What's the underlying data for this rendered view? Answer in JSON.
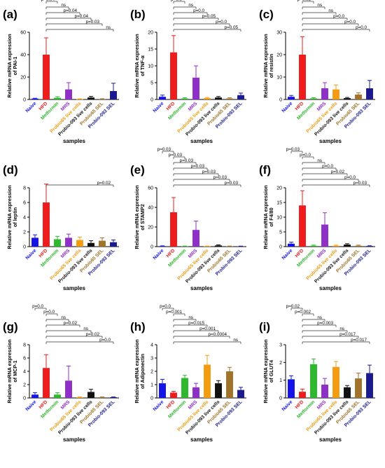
{
  "figure": {
    "xlabel": "samples",
    "sample_labels": [
      "Naive",
      "HFD",
      "Metformin",
      "MRS",
      "Probio65 live cells",
      "Probio-093 live cells",
      "Probio65 SEL",
      "Probio-093 SEL"
    ],
    "colors": {
      "Naive": "#1414e6",
      "HFD": "#ee1c1c",
      "Metformin": "#2db82d",
      "MRS": "#8e2fc8",
      "Probio65 live cells": "#f39c12",
      "Probio-093 live cells": "#111111",
      "Probio65 SEL": "#a0722a",
      "Probio-093 SEL": "#1b1b8f"
    }
  },
  "chart_data": [
    {
      "panel": "(a)",
      "type": "bar",
      "ylabel": [
        "Relative mRNA expression",
        "of PAI-1"
      ],
      "ylim": [
        0,
        60
      ],
      "yticks": [
        0,
        20,
        40,
        60
      ],
      "values": [
        0.8,
        40,
        1.5,
        9,
        0.3,
        1.8,
        0.4,
        7.5
      ],
      "errors": [
        0.3,
        15,
        1,
        6,
        0.3,
        1,
        0.3,
        7
      ],
      "comparisons": [
        {
          "to": "Naive",
          "label": "p=0.0"
        },
        {
          "to": "Metformin",
          "label": "p=0.04"
        },
        {
          "to": "MRS",
          "label": "ns"
        },
        {
          "to": "Probio65 live cells",
          "label": "p=0.04"
        },
        {
          "to": "Probio-093 live cells",
          "label": "p=0.04"
        },
        {
          "to": "Probio65 SEL",
          "label": "p=0.03"
        },
        {
          "to": "Probio-093 SEL",
          "label": "ns"
        }
      ]
    },
    {
      "panel": "(b)",
      "type": "bar",
      "ylabel": [
        "Relative mRNA expression",
        "of TNF-α"
      ],
      "ylim": [
        0,
        20
      ],
      "yticks": [
        0,
        5,
        10,
        15,
        20
      ],
      "values": [
        0.8,
        14,
        0.3,
        6.5,
        0.4,
        0.6,
        0.3,
        1.3
      ],
      "errors": [
        0.5,
        5,
        0.2,
        3.5,
        0.2,
        0.3,
        0.2,
        0.6
      ],
      "comparisons": [
        {
          "to": "Naive",
          "label": "p=0.03"
        },
        {
          "to": "Metformin",
          "label": "p=0.0"
        },
        {
          "to": "MRS",
          "label": "ns"
        },
        {
          "to": "Probio65 live cells",
          "label": "p=0.0"
        },
        {
          "to": "Probio-093 live cells",
          "label": "p=0.05"
        },
        {
          "to": "Probio65 SEL",
          "label": "p=0.0"
        },
        {
          "to": "Probio-093 SEL",
          "label": "p=0.05"
        }
      ]
    },
    {
      "panel": "(c)",
      "type": "bar",
      "ylabel": [
        "Relative mRNA expression",
        "of resistin"
      ],
      "ylim": [
        0,
        30
      ],
      "yticks": [
        0,
        10,
        20,
        30
      ],
      "values": [
        1.2,
        20,
        0.5,
        5,
        4.5,
        0.6,
        2.2,
        5
      ],
      "errors": [
        0.6,
        8,
        0.3,
        2.5,
        2,
        0.3,
        0.8,
        3.5
      ],
      "comparisons": [
        {
          "to": "Naive",
          "label": "p=0.0"
        },
        {
          "to": "Metformin",
          "label": "p=0.03"
        },
        {
          "to": "MRS",
          "label": "ns"
        },
        {
          "to": "Probio65 live cells",
          "label": "ns"
        },
        {
          "to": "Probio-093 live cells",
          "label": "p=0.0"
        },
        {
          "to": "Probio65 SEL",
          "label": "p=0.0"
        },
        {
          "to": "Probio-093 SEL",
          "label": "p=0.0"
        }
      ]
    },
    {
      "panel": "(d)",
      "type": "bar",
      "ylabel": [
        "Relative mRNA expression",
        "of leptin"
      ],
      "ylim": [
        0,
        8
      ],
      "yticks": [
        0,
        2,
        4,
        6,
        8
      ],
      "values": [
        1.2,
        6,
        1,
        1.2,
        0.9,
        0.5,
        0.8,
        0.6
      ],
      "errors": [
        0.4,
        2.5,
        0.4,
        0.5,
        0.4,
        0.3,
        0.4,
        0.3
      ],
      "comparisons": [
        {
          "to": "Probio-093 SEL",
          "label": "p=0.02"
        }
      ]
    },
    {
      "panel": "(e)",
      "type": "bar",
      "ylabel": [
        "Relative mRNA expression",
        "of STAMP2"
      ],
      "ylim": [
        0,
        60
      ],
      "yticks": [
        0,
        20,
        40,
        60
      ],
      "values": [
        0.5,
        35,
        0.4,
        17,
        0.4,
        1.2,
        0.4,
        0.3
      ],
      "errors": [
        0.3,
        15,
        0.2,
        9,
        0.2,
        0.6,
        0.2,
        0.2
      ],
      "comparisons": [
        {
          "to": "Naive",
          "label": "p=0.03"
        },
        {
          "to": "Metformin",
          "label": "p=0.03"
        },
        {
          "to": "MRS",
          "label": "p=0.03"
        },
        {
          "to": "Probio65 live cells",
          "label": "p=0.03"
        },
        {
          "to": "Probio-093 live cells",
          "label": "p=0.03"
        },
        {
          "to": "Probio65 SEL",
          "label": "p=0.03"
        },
        {
          "to": "Probio-093 SEL",
          "label": "p=0.03"
        }
      ]
    },
    {
      "panel": "(f)",
      "type": "bar",
      "ylabel": [
        "Relative mRNA expression",
        "of F4/80"
      ],
      "ylim": [
        0,
        20
      ],
      "yticks": [
        0,
        5,
        10,
        15,
        20
      ],
      "values": [
        1,
        14,
        0.3,
        7.5,
        0.3,
        0.7,
        0.3,
        0.2
      ],
      "errors": [
        0.5,
        5,
        0.2,
        4,
        0.2,
        0.3,
        0.2,
        0.1
      ],
      "comparisons": [
        {
          "to": "Naive",
          "label": "p=0.03"
        },
        {
          "to": "Metformin",
          "label": "p=0.0"
        },
        {
          "to": "MRS",
          "label": "ns"
        },
        {
          "to": "Probio65 live cells",
          "label": "p=0.0"
        },
        {
          "to": "Probio-093 live cells",
          "label": "p=0.02"
        },
        {
          "to": "Probio65 SEL",
          "label": "p=0.0"
        },
        {
          "to": "Probio-093 SEL",
          "label": "p=0.03"
        }
      ]
    },
    {
      "panel": "(g)",
      "type": "bar",
      "ylabel": [
        "Relative mRNA expression",
        "of MCP-1"
      ],
      "ylim": [
        0,
        8
      ],
      "yticks": [
        0,
        2,
        4,
        6,
        8
      ],
      "values": [
        0.5,
        4.5,
        0.5,
        2.6,
        0.1,
        0.9,
        0.1,
        0.1
      ],
      "errors": [
        0.3,
        2,
        0.3,
        2.2,
        0.05,
        0.4,
        0.05,
        0.05
      ],
      "comparisons": [
        {
          "to": "Naive",
          "label": "p=0.0"
        },
        {
          "to": "Metformin",
          "label": "p=0.0"
        },
        {
          "to": "MRS",
          "label": "ns"
        },
        {
          "to": "Probio65 live cells",
          "label": "p=0.02"
        },
        {
          "to": "Probio-093 live cells",
          "label": "ns"
        },
        {
          "to": "Probio65 SEL",
          "label": "p=0.02"
        },
        {
          "to": "Probio-093 SEL",
          "label": "p=0.0"
        }
      ]
    },
    {
      "panel": "(h)",
      "type": "bar",
      "ylabel": [
        "Relative mRNA expression",
        "of Adiponectin"
      ],
      "ylim": [
        0,
        4
      ],
      "yticks": [
        0,
        1,
        2,
        3,
        4
      ],
      "values": [
        1.1,
        0.4,
        1.5,
        0.8,
        2.5,
        1.1,
        2,
        0.6
      ],
      "errors": [
        0.3,
        0.1,
        0.2,
        0.3,
        0.7,
        0.2,
        0.3,
        0.2
      ],
      "comparisons": [
        {
          "to": "Naive",
          "label": "p=0.0"
        },
        {
          "to": "Metformin",
          "label": "p=0.001"
        },
        {
          "to": "MRS",
          "label": "ns"
        },
        {
          "to": "Probio65 live cells",
          "label": "p=0.015"
        },
        {
          "to": "Probio-093 live cells",
          "label": "p=0.001"
        },
        {
          "to": "Probio65 SEL",
          "label": "p=0.0004"
        },
        {
          "to": "Probio-093 SEL",
          "label": "ns"
        }
      ]
    },
    {
      "panel": "(i)",
      "type": "bar",
      "ylabel": [
        "Relative mRNA expression",
        "of GLUT4"
      ],
      "ylim": [
        0,
        3
      ],
      "yticks": [
        0,
        1,
        2,
        3
      ],
      "values": [
        1.05,
        0.35,
        1.9,
        0.75,
        1.75,
        0.6,
        1.1,
        1.4
      ],
      "errors": [
        0.2,
        0.15,
        0.3,
        0.35,
        0.3,
        0.1,
        0.3,
        0.45
      ],
      "comparisons": [
        {
          "to": "Naive",
          "label": "p=0.02"
        },
        {
          "to": "Metformin",
          "label": "p=0.002"
        },
        {
          "to": "MRS",
          "label": "ns"
        },
        {
          "to": "Probio65 live cells",
          "label": "p=0.003"
        },
        {
          "to": "Probio-093 live cells",
          "label": "ns"
        },
        {
          "to": "Probio65 SEL",
          "label": "p=0.017"
        },
        {
          "to": "Probio-093 SEL",
          "label": "p=0.017"
        }
      ]
    }
  ]
}
